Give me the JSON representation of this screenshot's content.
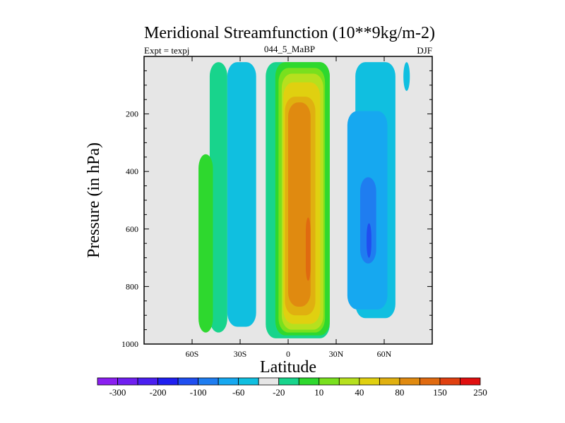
{
  "chart_data": {
    "type": "filled-contour",
    "title": "Meridional Streamfunction (10**9kg/m-2)",
    "subtitle_left": "Expt = texpj",
    "subtitle_center": "044_5_MaBP",
    "subtitle_right": "DJF",
    "xlabel": "Latitude",
    "ylabel": "Pressure (in hPa)",
    "xlim": [
      -90,
      90
    ],
    "ylim": [
      1000,
      0
    ],
    "x_ticks": [
      {
        "value": -60,
        "label": "60S"
      },
      {
        "value": -30,
        "label": "30S"
      },
      {
        "value": 0,
        "label": "0"
      },
      {
        "value": 30,
        "label": "30N"
      },
      {
        "value": 60,
        "label": "60N"
      }
    ],
    "y_ticks": [
      {
        "value": 200,
        "label": "200"
      },
      {
        "value": 400,
        "label": "400"
      },
      {
        "value": 600,
        "label": "600"
      },
      {
        "value": 800,
        "label": "800"
      },
      {
        "value": 1000,
        "label": "1000"
      }
    ],
    "colorbar": {
      "colors": [
        "#8a1ff0",
        "#6f1ff0",
        "#4a1ff0",
        "#1f1ff0",
        "#1f4ef0",
        "#1f7df0",
        "#16a8f0",
        "#10bfe0",
        "#e6e6e6",
        "#18d48c",
        "#2ed82e",
        "#79e01e",
        "#b6e01e",
        "#e0d010",
        "#e0b010",
        "#e08a10",
        "#e06a10",
        "#e04010",
        "#e00f0f"
      ],
      "labels": [
        "-300",
        "-200",
        "-100",
        "-60",
        "-20",
        "10",
        "40",
        "80",
        "150",
        "250"
      ]
    },
    "cells": [
      {
        "band": "10 to 40",
        "lat_range": [
          -49,
          -38
        ],
        "p_range": [
          20,
          960
        ]
      },
      {
        "band": "10 to 40",
        "lat_range": [
          -14,
          26
        ],
        "p_range": [
          20,
          980
        ]
      },
      {
        "band": "40 to 60",
        "lat_range": [
          -56,
          -47
        ],
        "p_range": [
          340,
          960
        ]
      },
      {
        "band": "40 to 60",
        "lat_range": [
          -8,
          26
        ],
        "p_range": [
          20,
          970
        ]
      },
      {
        "band": "60 to 80",
        "lat_range": [
          -6,
          23
        ],
        "p_range": [
          40,
          960
        ]
      },
      {
        "band": "80 to 100",
        "lat_range": [
          -4,
          22
        ],
        "p_range": [
          60,
          950
        ]
      },
      {
        "band": "100 to 150",
        "lat_range": [
          -3,
          20
        ],
        "p_range": [
          90,
          930
        ]
      },
      {
        "band": "150 to 200",
        "lat_range": [
          -2,
          17
        ],
        "p_range": [
          140,
          900
        ]
      },
      {
        "band": "200 to 250",
        "lat_range": [
          0,
          14
        ],
        "p_range": [
          160,
          870
        ]
      },
      {
        "band": "250 to 300",
        "lat_range": [
          11,
          14
        ],
        "p_range": [
          560,
          780
        ]
      },
      {
        "band": "-20 to 10",
        "lat_range": [
          -38,
          -20
        ],
        "p_range": [
          20,
          940
        ]
      },
      {
        "band": "-20 to 10",
        "lat_range": [
          42,
          67
        ],
        "p_range": [
          20,
          910
        ]
      },
      {
        "band": "-20 to 10",
        "lat_range": [
          72,
          76
        ],
        "p_range": [
          20,
          120
        ]
      },
      {
        "band": "-60 to -20",
        "lat_range": [
          37,
          62
        ],
        "p_range": [
          190,
          880
        ]
      },
      {
        "band": "-100 to -60",
        "lat_range": [
          45,
          55
        ],
        "p_range": [
          420,
          720
        ]
      },
      {
        "band": "-200 to -100",
        "lat_range": [
          49,
          52
        ],
        "p_range": [
          580,
          700
        ]
      }
    ]
  }
}
